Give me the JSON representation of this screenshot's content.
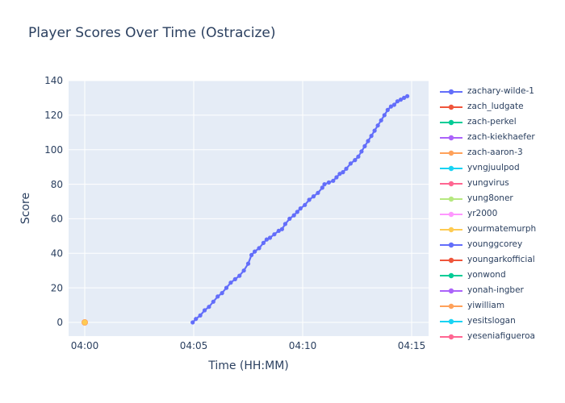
{
  "title": {
    "text": "Player Scores Over Time (Ostracize)"
  },
  "chart_data": {
    "type": "line",
    "title": "Player Scores Over Time (Ostracize)",
    "xlabel": "Time (HH:MM)",
    "ylabel": "Score",
    "x_unit": "minutes after 04:00",
    "x_tick_labels": [
      "04:00",
      "04:05",
      "04:10",
      "04:15"
    ],
    "x_tick_minutes": [
      0,
      5,
      10,
      15
    ],
    "y_ticks": [
      0,
      20,
      40,
      60,
      80,
      100,
      120,
      140
    ],
    "ylim": [
      -8,
      140
    ],
    "xlim_minutes": [
      -0.75,
      15.8
    ],
    "grid": true,
    "legend_position": "right",
    "colors": {
      "page_bg": "#ffffff",
      "plot_bg": "#e5ecf6",
      "grid": "#ffffff",
      "text": "#2a3f5f"
    },
    "series": [
      {
        "name": "zachary-wilde-1",
        "color": "#636efa",
        "mode": "lines+markers",
        "marker_px": 2.6,
        "points": [
          [
            4.95,
            0
          ],
          [
            5.1,
            2
          ],
          [
            5.3,
            4
          ],
          [
            5.5,
            7
          ],
          [
            5.7,
            9
          ],
          [
            5.9,
            12
          ],
          [
            6.1,
            15
          ],
          [
            6.3,
            17
          ],
          [
            6.5,
            20
          ],
          [
            6.7,
            23
          ],
          [
            6.9,
            25
          ],
          [
            7.1,
            27
          ],
          [
            7.3,
            30
          ],
          [
            7.5,
            34
          ],
          [
            7.65,
            39
          ],
          [
            7.8,
            41
          ],
          [
            8.0,
            43
          ],
          [
            8.2,
            46
          ],
          [
            8.35,
            48
          ],
          [
            8.5,
            49
          ],
          [
            8.7,
            51
          ],
          [
            8.9,
            53
          ],
          [
            9.05,
            54
          ],
          [
            9.2,
            57
          ],
          [
            9.4,
            60
          ],
          [
            9.6,
            62
          ],
          [
            9.75,
            64
          ],
          [
            9.9,
            66
          ],
          [
            10.1,
            68
          ],
          [
            10.3,
            71
          ],
          [
            10.5,
            73
          ],
          [
            10.7,
            75
          ],
          [
            10.9,
            78
          ],
          [
            11.0,
            80
          ],
          [
            11.2,
            81
          ],
          [
            11.4,
            82
          ],
          [
            11.55,
            84
          ],
          [
            11.7,
            86
          ],
          [
            11.85,
            87
          ],
          [
            12.0,
            89
          ],
          [
            12.2,
            92
          ],
          [
            12.4,
            94
          ],
          [
            12.55,
            96
          ],
          [
            12.7,
            99
          ],
          [
            12.85,
            102
          ],
          [
            13.0,
            105
          ],
          [
            13.15,
            108
          ],
          [
            13.3,
            111
          ],
          [
            13.45,
            114
          ],
          [
            13.6,
            117
          ],
          [
            13.75,
            120
          ],
          [
            13.9,
            123
          ],
          [
            14.05,
            125
          ],
          [
            14.2,
            126
          ],
          [
            14.35,
            128
          ],
          [
            14.5,
            129
          ],
          [
            14.65,
            130
          ],
          [
            14.8,
            131
          ]
        ]
      },
      {
        "name": "zach-aaron-3",
        "color": "#ffa15a",
        "mode": "markers",
        "marker_px": 4,
        "points": [
          [
            0,
            0
          ]
        ]
      },
      {
        "name": "yourmatemurph",
        "color": "#fecb52",
        "mode": "markers",
        "marker_px": 3.2,
        "points": [
          [
            0,
            0
          ]
        ]
      }
    ],
    "legend_entries": [
      {
        "label": "zachary-wilde-1",
        "color": "#636efa"
      },
      {
        "label": "zach_ludgate",
        "color": "#ef553b"
      },
      {
        "label": "zach-perkel",
        "color": "#00cc96"
      },
      {
        "label": "zach-kiekhaefer",
        "color": "#ab63fa"
      },
      {
        "label": "zach-aaron-3",
        "color": "#ffa15a"
      },
      {
        "label": "yvngjuulpod",
        "color": "#19d3f3"
      },
      {
        "label": "yungvirus",
        "color": "#ff6692"
      },
      {
        "label": "yung8oner",
        "color": "#b6e880"
      },
      {
        "label": "yr2000",
        "color": "#ff97ff"
      },
      {
        "label": "yourmatemurph",
        "color": "#fecb52"
      },
      {
        "label": "younggcorey",
        "color": "#636efa"
      },
      {
        "label": "youngarkofficial",
        "color": "#ef553b"
      },
      {
        "label": "yonwond",
        "color": "#00cc96"
      },
      {
        "label": "yonah-ingber",
        "color": "#ab63fa"
      },
      {
        "label": "yiwilliam",
        "color": "#ffa15a"
      },
      {
        "label": "yesitslogan",
        "color": "#19d3f3"
      },
      {
        "label": "yeseniafigueroa",
        "color": "#ff6692"
      }
    ]
  }
}
